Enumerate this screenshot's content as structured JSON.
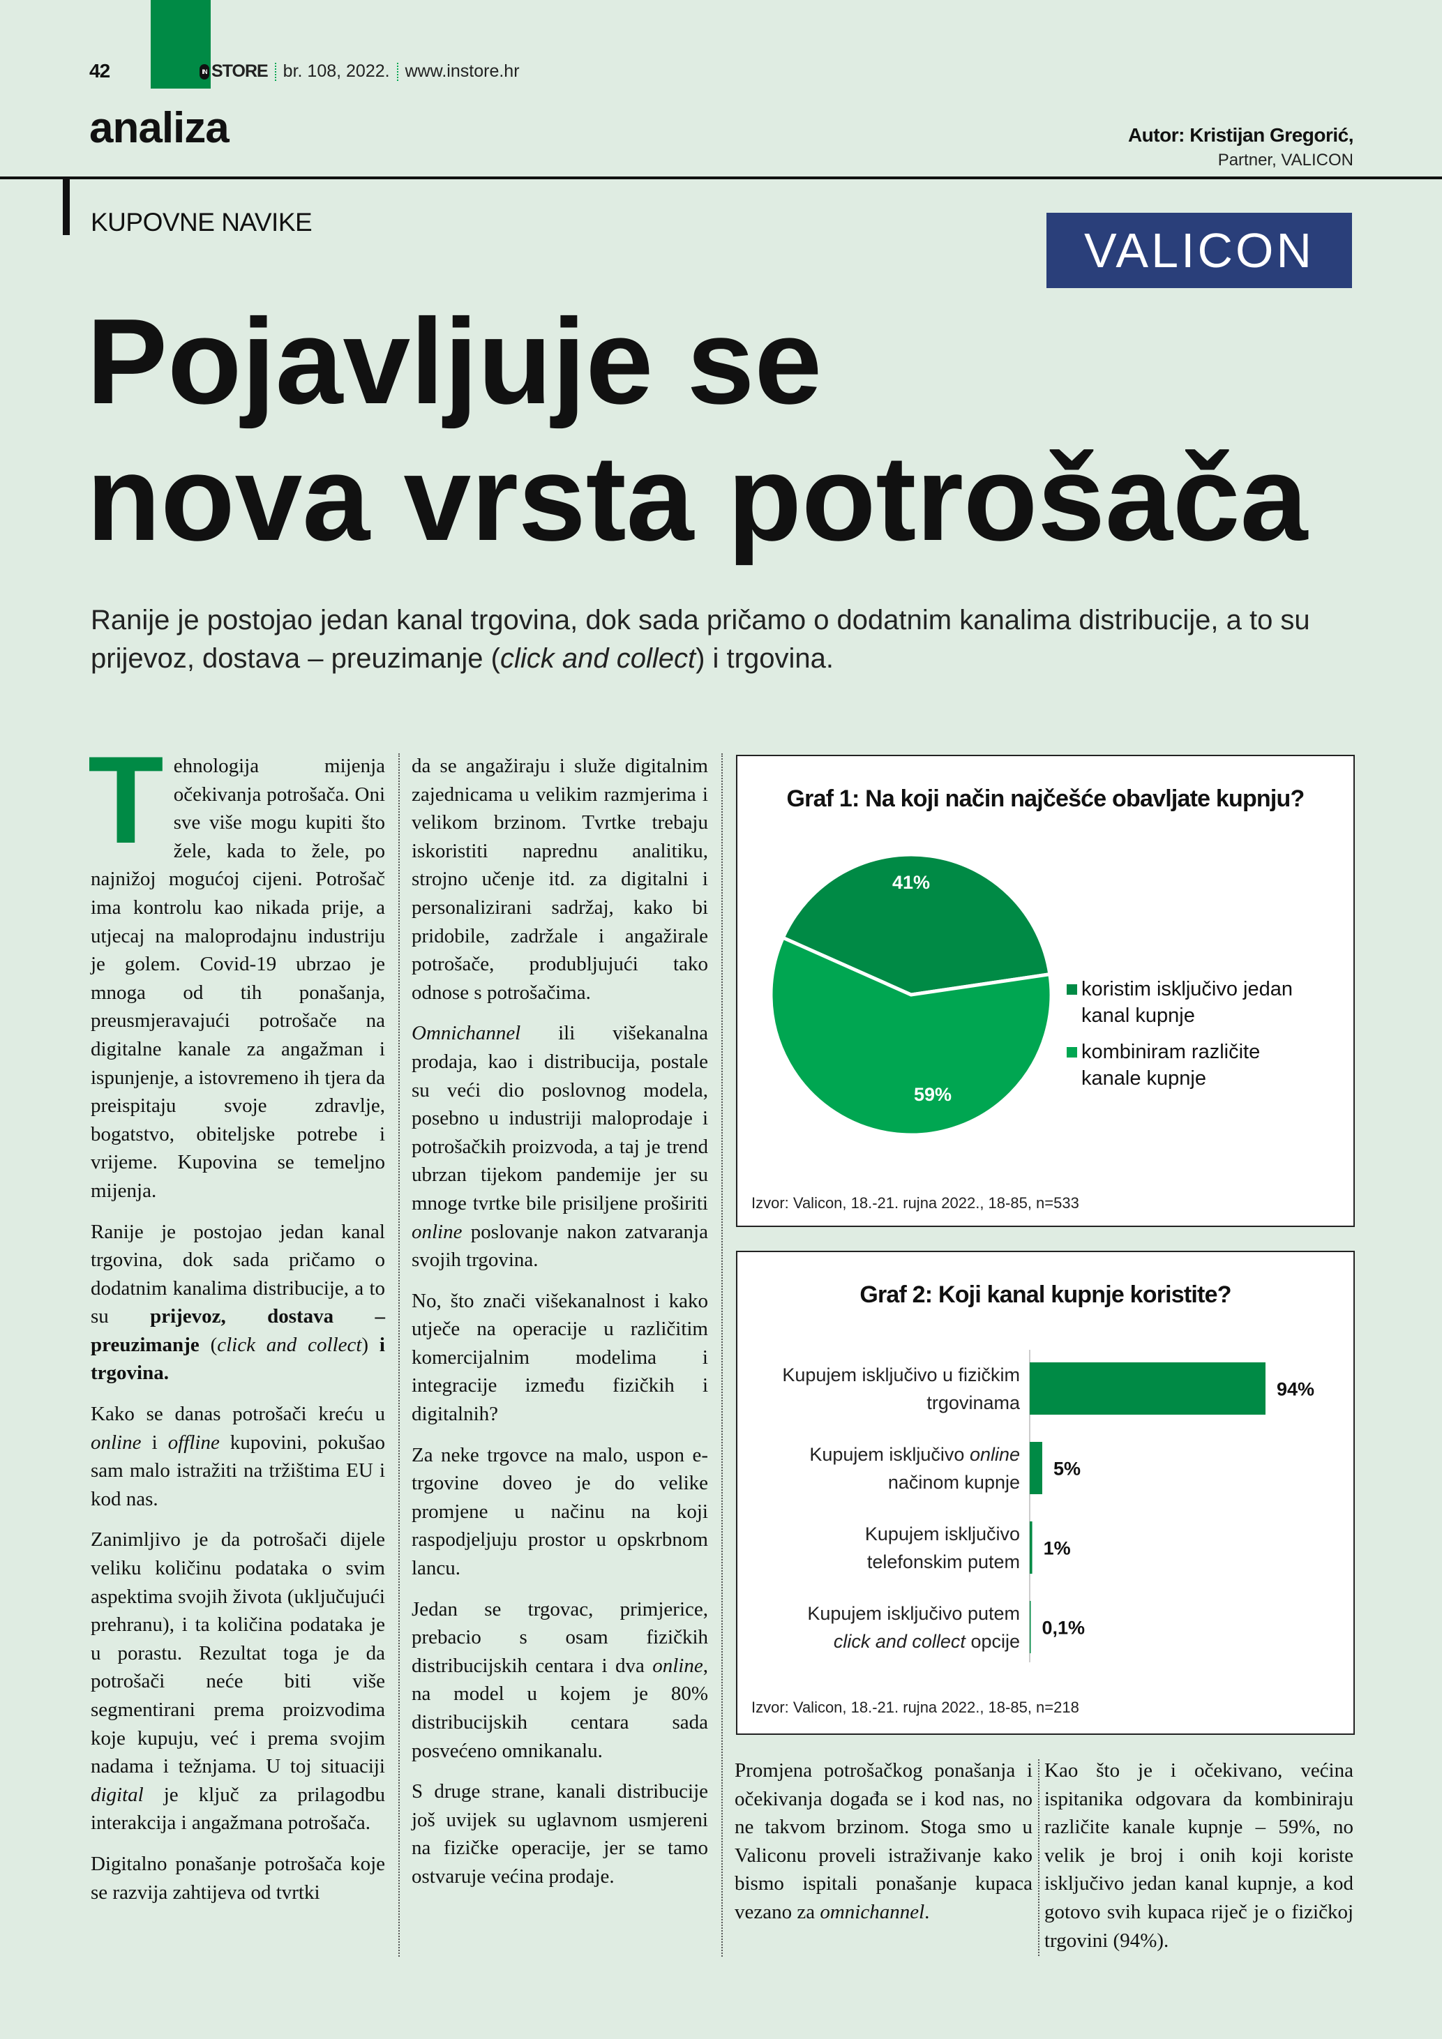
{
  "header": {
    "page_number": "42",
    "logo_badge": "IN",
    "logo_text": "STORE",
    "issue": "br. 108, 2022.",
    "website": "www.instore.hr",
    "section": "analiza",
    "author_name": "Autor: Kristijan Gregorić,",
    "author_role": "Partner, VALICON"
  },
  "article": {
    "kicker": "KUPOVNE NAVIKE",
    "sponsor_logo": "VALICON",
    "headline_line1": "Pojavljuje se",
    "headline_line2": "nova vrsta potrošača",
    "lead": [
      {
        "t": "Ranije je postojao jedan kanal trgovina, dok sada pričamo o dodatnim kanalima distribucije, a to su prijevoz, dostava – preuzimanje (",
        "s": "n"
      },
      {
        "t": "click and collect",
        "s": "i"
      },
      {
        "t": ") i trgovina.",
        "s": "n"
      }
    ],
    "drop_cap": "T",
    "col1": [
      [
        {
          "t": "ehnologija mijenja očekivanja potrošača. Oni sve više mogu kupiti što žele, kada to žele, po najnižoj mogućoj cijeni. Potrošač ima kontrolu kao nikada prije, a utjecaj na maloprodajnu industriju je golem. Covid-19 ubrzao je mnoga od tih ponašanja, preusmjeravajući potrošače na digitalne kanale za angažman i ispunjenje, a istovremeno ih tjera da preispitaju svoje zdravlje, bogatstvo, obiteljske potrebe i vrijeme. Kupovina se temeljno mijenja.",
          "s": "n"
        }
      ],
      [
        {
          "t": "Ranije je postojao jedan kanal trgovina, dok sada pričamo o dodatnim kanalima distribucije, a to su ",
          "s": "n"
        },
        {
          "t": "prijevoz, dostava – preuzimanje",
          "s": "b"
        },
        {
          "t": " (",
          "s": "n"
        },
        {
          "t": "click and collect",
          "s": "i"
        },
        {
          "t": ") ",
          "s": "n"
        },
        {
          "t": "i trgovina.",
          "s": "b"
        }
      ],
      [
        {
          "t": "Kako se danas potrošači kreću u ",
          "s": "n"
        },
        {
          "t": "online",
          "s": "i"
        },
        {
          "t": " i ",
          "s": "n"
        },
        {
          "t": "offline",
          "s": "i"
        },
        {
          "t": " kupovini, pokušao sam malo istražiti na tržištima EU i kod nas.",
          "s": "n"
        }
      ],
      [
        {
          "t": "Zanimljivo je da potrošači dijele veliku količinu podataka o svim aspektima svojih života (uključujući prehranu), i ta količina podataka je u porastu. Rezultat toga je da potrošači neće biti više segmentirani prema proizvodima koje kupuju, već i prema svojim nadama i težnjama. U toj situaciji ",
          "s": "n"
        },
        {
          "t": "digital",
          "s": "i"
        },
        {
          "t": " je ključ za prilagodbu interakcija i angažmana potrošača.",
          "s": "n"
        }
      ],
      [
        {
          "t": "Digitalno ponašanje potrošača koje se razvija zahtijeva od tvrtki",
          "s": "n"
        }
      ]
    ],
    "col2": [
      [
        {
          "t": "da se angažiraju i služe digitalnim zajednicama u velikim razmjerima i velikom brzinom. Tvrtke trebaju iskoristiti naprednu analitiku, strojno učenje itd. za digitalni i personalizirani sadržaj, kako bi pridobile, zadržale i angažirale potrošače, produbljujući tako odnose s potrošačima.",
          "s": "n"
        }
      ],
      [
        {
          "t": "Omnichannel",
          "s": "i"
        },
        {
          "t": " ili višekanalna prodaja, kao i distribucija, postale su veći dio poslovnog modela, posebno u industriji maloprodaje i potrošačkih proizvoda, a taj je trend ubrzan tijekom pandemije jer su mnoge tvrtke bile prisiljene proširiti ",
          "s": "n"
        },
        {
          "t": "online",
          "s": "i"
        },
        {
          "t": " poslovanje nakon zatvaranja svojih trgovina.",
          "s": "n"
        }
      ],
      [
        {
          "t": "No, što znači višekanalnost i kako utječe na operacije u različitim komercijalnim modelima i integracije između fizičkih i digitalnih?",
          "s": "n"
        }
      ],
      [
        {
          "t": "Za neke trgovce na malo, uspon e-trgovine doveo je do velike promjene u načinu na koji raspodjeljuju prostor u opskrbnom lancu.",
          "s": "n"
        }
      ],
      [
        {
          "t": "Jedan se trgovac, primjerice, prebacio s osam fizičkih distribucijskih centara i dva ",
          "s": "n"
        },
        {
          "t": "online",
          "s": "i"
        },
        {
          "t": ", na model u kojem je 80% distribucijskih centara sada posvećeno omnikanalu.",
          "s": "n"
        }
      ],
      [
        {
          "t": "S druge strane, kanali distribucije još uvijek su uglavnom usmjereni na fizičke operacije, jer se tamo ostvaruje većina prodaje.",
          "s": "n"
        }
      ]
    ],
    "col3": [
      [
        {
          "t": "Promjena potrošačkog ponašanja i očekivanja događa se i kod nas, no ne takvom brzinom. Stoga smo u Valiconu proveli istraživanje kako bismo ispitali ponašanje kupaca vezano za ",
          "s": "n"
        },
        {
          "t": "omnichannel",
          "s": "i"
        },
        {
          "t": ".",
          "s": "n"
        }
      ]
    ],
    "col4": [
      [
        {
          "t": "Kao što je i očekivano, većina ispitanika odgovara da kombiniraju različite kanale kupnje – 59%, no velik je broj i onih koji koriste isključivo jedan kanal kupnje, a kod gotovo svih kupaca riječ je o fizičkoj trgovini (94%).",
          "s": "n"
        }
      ]
    ]
  },
  "colors": {
    "background": "#dfece2",
    "brand_green": "#008a45",
    "light_green": "#00a651",
    "valicon_blue": "#2a3f7a"
  },
  "chart_data": [
    {
      "type": "pie",
      "title": "Graf 1: Na koji način najčešće obavljate kupnju?",
      "slices": [
        {
          "label": "koristim isključivo jedan kanal kupnje",
          "value": 41,
          "value_label": "41%",
          "color": "#008a45"
        },
        {
          "label": "kombiniram različite kanale kupnje",
          "value": 59,
          "value_label": "59%",
          "color": "#00a651"
        }
      ],
      "legend": "right",
      "source": "Izvor: Valicon, 18.-21. rujna 2022., 18-85, n=533"
    },
    {
      "type": "bar",
      "orientation": "horizontal",
      "title": "Graf 2: Koji kanal kupnje koristite?",
      "categories": [
        [
          {
            "t": "Kupujem isključivo u fizičkim",
            "s": "n"
          },
          {
            "t": "trgovinama",
            "s": "n",
            "br": true
          }
        ],
        [
          {
            "t": "Kupujem isključivo ",
            "s": "n"
          },
          {
            "t": "online",
            "s": "i"
          },
          {
            "t": "načinom kupnje",
            "s": "n",
            "br": true
          }
        ],
        [
          {
            "t": "Kupujem isključivo",
            "s": "n"
          },
          {
            "t": "telefonskim putem",
            "s": "n",
            "br": true
          }
        ],
        [
          {
            "t": "Kupujem isključivo putem",
            "s": "n"
          },
          {
            "t": "click and collect",
            "s": "i",
            "br": true
          },
          {
            "t": " opcije",
            "s": "n"
          }
        ]
      ],
      "values": [
        94,
        5,
        1,
        0.1
      ],
      "value_labels": [
        "94%",
        "5%",
        "1%",
        "0,1%"
      ],
      "color": "#008a45",
      "xlim": [
        0,
        100
      ],
      "grid": false,
      "source": "Izvor: Valicon, 18.-21. rujna 2022., 18-85, n=218"
    }
  ]
}
